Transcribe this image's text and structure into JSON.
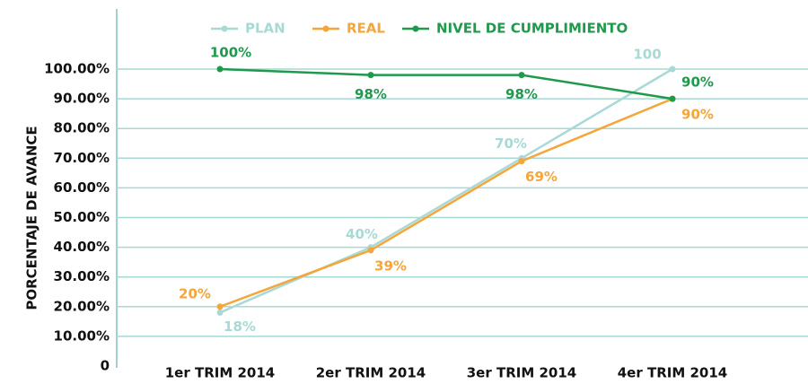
{
  "chart_data": {
    "type": "line",
    "y_label": "PORCENTAJE DE AVANCE",
    "categories": [
      "1er TRIM 2014",
      "2er TRIM 2014",
      "3er TRIM 2014",
      "4er TRIM 2014"
    ],
    "series": [
      {
        "name": "PLAN",
        "color": "#a9d9d6",
        "values": [
          18,
          40,
          70,
          100
        ],
        "value_labels": [
          "18%",
          "40%",
          "70%",
          "100"
        ]
      },
      {
        "name": "REAL",
        "color": "#f5a53a",
        "values": [
          20,
          39,
          69,
          90
        ],
        "value_labels": [
          "20%",
          "39%",
          "69%",
          "90%"
        ]
      },
      {
        "name": "NIVEL DE CUMPLIMIENTO",
        "color": "#1f9a4c",
        "values": [
          100,
          98,
          98,
          90
        ],
        "value_labels": [
          "100%",
          "98%",
          "98%",
          "90%"
        ]
      }
    ],
    "ylim": [
      0,
      100
    ],
    "yticks": [
      0,
      {
        "value": 10,
        "label": "10.00%"
      },
      {
        "value": 20,
        "label": "20.00%"
      },
      {
        "value": 30,
        "label": "30.00%"
      },
      {
        "value": 40,
        "label": "40.00%"
      },
      {
        "value": 50,
        "label": "50.00%"
      },
      {
        "value": 60,
        "label": "60.00%"
      },
      {
        "value": 70,
        "label": "70.00%"
      },
      {
        "value": 80,
        "label": "80.00%"
      },
      {
        "value": 90,
        "label": "90.00%"
      },
      {
        "value": 100,
        "label": "100.00%"
      }
    ],
    "grid": true,
    "legend": "top"
  }
}
